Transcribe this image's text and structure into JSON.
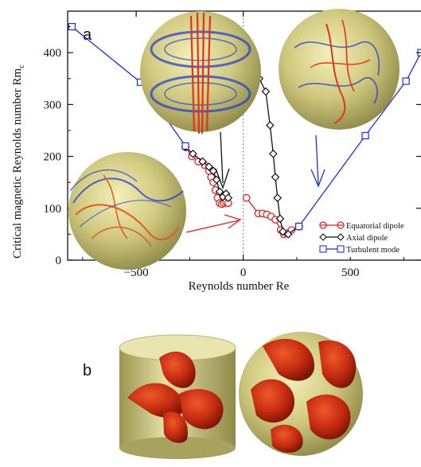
{
  "panels": {
    "a_label": "a",
    "b_label": "b"
  },
  "chart_data": {
    "type": "line",
    "xlabel": "Reynolds number Re",
    "ylabel": "Critical magnetic Reynolds number Rm",
    "ylabel_subscript": "c",
    "xlim": [
      -820,
      830
    ],
    "ylim": [
      0,
      480
    ],
    "x_ticks": [
      -500,
      0,
      500
    ],
    "x_tick_labels": [
      "−500",
      "0",
      "500"
    ],
    "y_ticks": [
      0,
      100,
      200,
      300,
      400
    ],
    "y_tick_labels": [
      "0",
      "100",
      "200",
      "300",
      "400"
    ],
    "dotted_vertical_at": 0,
    "legend_position": "bottom-right",
    "series": [
      {
        "name": "Equatorial dipole",
        "color": "#e8201c",
        "marker": "circle",
        "segments": [
          [
            [
              -270,
              218
            ],
            [
              -240,
              200
            ],
            [
              -210,
              190
            ],
            [
              -180,
              183
            ],
            [
              -160,
              172
            ],
            [
              -150,
              160
            ],
            [
              -140,
              150
            ],
            [
              -130,
              135
            ],
            [
              -120,
              120
            ],
            [
              -110,
              110
            ],
            [
              -100,
              108
            ],
            [
              -90,
              110
            ],
            [
              -80,
              112
            ],
            [
              -70,
              110
            ]
          ],
          [
            [
              15,
              120
            ],
            [
              70,
              90
            ],
            [
              90,
              90
            ],
            [
              110,
              88
            ],
            [
              130,
              84
            ],
            [
              150,
              78
            ],
            [
              175,
              58
            ],
            [
              190,
              50
            ],
            [
              205,
              52
            ],
            [
              225,
              58
            ],
            [
              260,
              65
            ]
          ]
        ]
      },
      {
        "name": "Axial dipole",
        "color": "#111111",
        "marker": "diamond",
        "segments": [
          [
            [
              -270,
              218
            ],
            [
              -235,
              205
            ],
            [
              -190,
              190
            ],
            [
              -160,
              180
            ],
            [
              -140,
              172
            ],
            [
              -125,
              155
            ],
            [
              -110,
              132
            ],
            [
              -95,
              122
            ],
            [
              -80,
              128
            ],
            [
              -70,
              120
            ]
          ],
          [
            [
              75,
              350
            ],
            [
              105,
              325
            ],
            [
              125,
              260
            ],
            [
              140,
              205
            ],
            [
              150,
              160
            ],
            [
              160,
              120
            ],
            [
              172,
              80
            ],
            [
              185,
              55
            ],
            [
              210,
              50
            ],
            [
              260,
              65
            ]
          ]
        ]
      },
      {
        "name": "Turbulent mode",
        "color": "#1d2fe0",
        "marker": "square",
        "segments": [
          [
            [
              -800,
              450
            ],
            [
              -480,
              343
            ],
            [
              -270,
              220
            ]
          ],
          [
            [
              260,
              65
            ],
            [
              570,
              240
            ],
            [
              760,
              345
            ],
            [
              830,
              400
            ]
          ]
        ]
      }
    ]
  }
}
